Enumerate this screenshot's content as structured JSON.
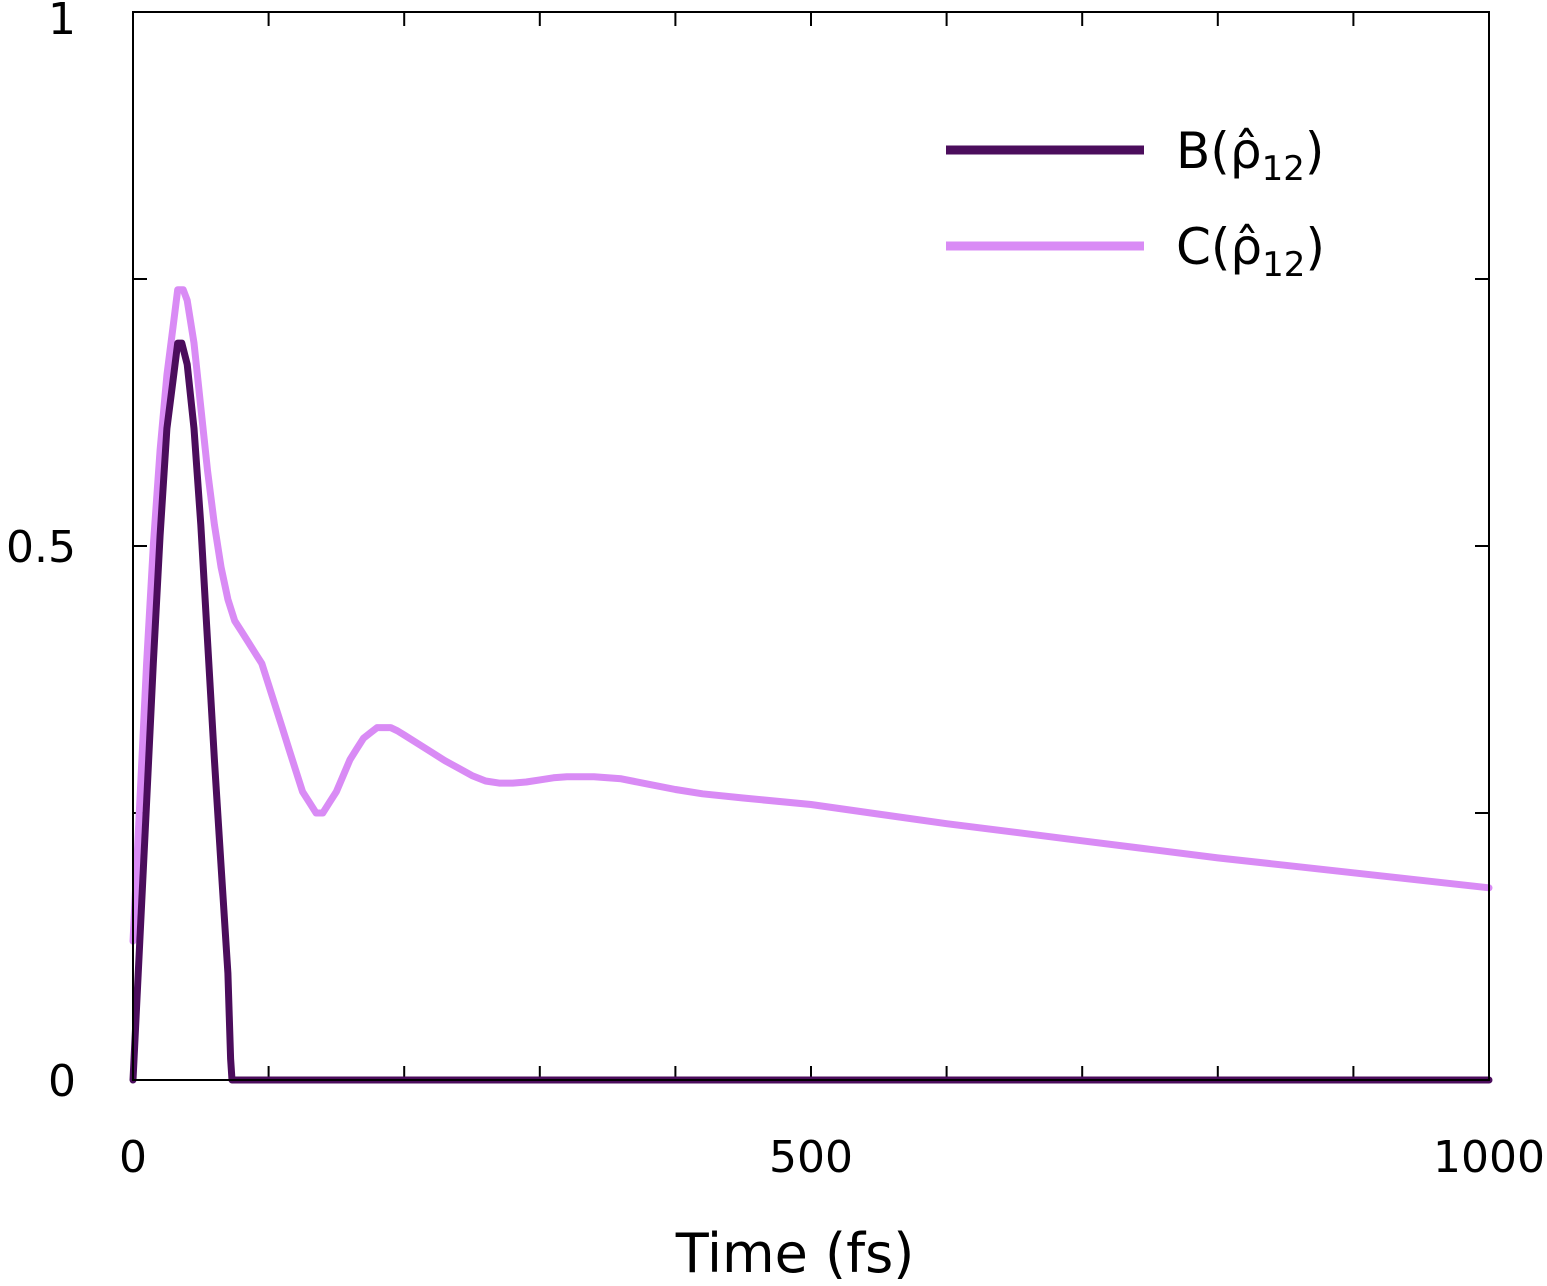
{
  "chart_data": {
    "type": "line",
    "xlabel": "Time (fs)",
    "ylabel": "",
    "xlim": [
      0,
      1000
    ],
    "ylim": [
      0,
      1
    ],
    "x_ticks": [
      0,
      100,
      200,
      300,
      400,
      500,
      600,
      700,
      800,
      900,
      1000
    ],
    "x_tick_labels": {
      "0": "0",
      "500": "500",
      "1000": "1000"
    },
    "y_ticks": [
      0,
      0.25,
      0.5,
      0.75,
      1
    ],
    "y_tick_labels": {
      "0": "0",
      "0.5": "0.5",
      "1": "1"
    },
    "grid": false,
    "legend_position": "top-right",
    "series": [
      {
        "name": "B(ρ̂₁₂)",
        "name_base": "B(",
        "name_hat": "ρ̂",
        "name_sub": "12",
        "name_close": ")",
        "color": "#4b0d5c",
        "x": [
          0,
          5,
          10,
          15,
          20,
          25,
          30,
          33,
          36,
          40,
          45,
          50,
          55,
          60,
          65,
          70,
          72,
          73,
          80,
          100,
          200,
          500,
          1000
        ],
        "y": [
          0.0,
          0.13,
          0.26,
          0.39,
          0.51,
          0.61,
          0.66,
          0.69,
          0.69,
          0.67,
          0.61,
          0.52,
          0.41,
          0.3,
          0.2,
          0.1,
          0.02,
          0.0,
          0.0,
          0.0,
          0.0,
          0.0,
          0.0
        ]
      },
      {
        "name": "C(ρ̂₁₂)",
        "name_base": "C(",
        "name_hat": "ρ̂",
        "name_sub": "12",
        "name_close": ")",
        "color": "#d98bf5",
        "x": [
          0,
          5,
          10,
          15,
          20,
          25,
          30,
          33,
          37,
          40,
          45,
          50,
          55,
          60,
          65,
          70,
          75,
          80,
          85,
          90,
          95,
          100,
          105,
          110,
          115,
          120,
          125,
          130,
          135,
          140,
          145,
          150,
          155,
          160,
          165,
          170,
          175,
          180,
          185,
          190,
          195,
          200,
          210,
          220,
          230,
          240,
          250,
          260,
          270,
          280,
          290,
          300,
          310,
          320,
          330,
          340,
          350,
          360,
          380,
          400,
          420,
          450,
          500,
          550,
          600,
          650,
          700,
          750,
          800,
          850,
          900,
          950,
          1000
        ],
        "y": [
          0.13,
          0.26,
          0.39,
          0.5,
          0.59,
          0.66,
          0.71,
          0.74,
          0.74,
          0.73,
          0.69,
          0.63,
          0.57,
          0.52,
          0.48,
          0.45,
          0.43,
          0.42,
          0.41,
          0.4,
          0.39,
          0.37,
          0.35,
          0.33,
          0.31,
          0.29,
          0.27,
          0.26,
          0.25,
          0.25,
          0.26,
          0.27,
          0.285,
          0.3,
          0.31,
          0.32,
          0.325,
          0.33,
          0.33,
          0.33,
          0.327,
          0.323,
          0.315,
          0.307,
          0.299,
          0.292,
          0.285,
          0.28,
          0.278,
          0.278,
          0.279,
          0.281,
          0.283,
          0.284,
          0.284,
          0.284,
          0.283,
          0.282,
          0.277,
          0.272,
          0.268,
          0.264,
          0.258,
          0.249,
          0.24,
          0.232,
          0.224,
          0.216,
          0.208,
          0.201,
          0.194,
          0.187,
          0.18
        ]
      }
    ]
  }
}
